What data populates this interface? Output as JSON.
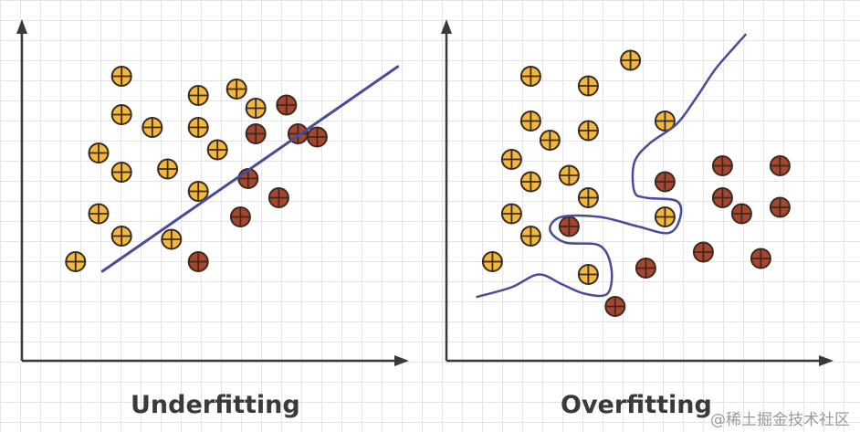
{
  "labels": {
    "underfitting": "Underfitting",
    "overfitting": "Overfitting",
    "watermark": "@稀土掘金技术社区"
  },
  "colors": {
    "class_a": "#f2b83e",
    "class_b": "#a8452f",
    "outline": "#3b2a1e",
    "boundary": "#4a4a9a",
    "axis": "#3a3a3a"
  },
  "panels": [
    {
      "name": "underfitting",
      "boundary_type": "line",
      "points": [
        {
          "x": 2.6,
          "y": 8.9,
          "cls": "a"
        },
        {
          "x": 4.6,
          "y": 8.3,
          "cls": "a"
        },
        {
          "x": 5.6,
          "y": 8.5,
          "cls": "a"
        },
        {
          "x": 6.1,
          "y": 7.9,
          "cls": "a"
        },
        {
          "x": 2.6,
          "y": 7.7,
          "cls": "a"
        },
        {
          "x": 3.4,
          "y": 7.3,
          "cls": "a"
        },
        {
          "x": 4.6,
          "y": 7.3,
          "cls": "a"
        },
        {
          "x": 2.0,
          "y": 6.5,
          "cls": "a"
        },
        {
          "x": 2.6,
          "y": 5.9,
          "cls": "a"
        },
        {
          "x": 3.8,
          "y": 6.0,
          "cls": "a"
        },
        {
          "x": 5.1,
          "y": 6.6,
          "cls": "a"
        },
        {
          "x": 4.6,
          "y": 5.3,
          "cls": "a"
        },
        {
          "x": 2.0,
          "y": 4.6,
          "cls": "a"
        },
        {
          "x": 2.6,
          "y": 3.9,
          "cls": "a"
        },
        {
          "x": 3.9,
          "y": 3.8,
          "cls": "a"
        },
        {
          "x": 1.4,
          "y": 3.1,
          "cls": "a"
        },
        {
          "x": 6.9,
          "y": 8.0,
          "cls": "b"
        },
        {
          "x": 6.1,
          "y": 7.1,
          "cls": "b"
        },
        {
          "x": 7.2,
          "y": 7.1,
          "cls": "b"
        },
        {
          "x": 7.7,
          "y": 7.0,
          "cls": "b"
        },
        {
          "x": 5.9,
          "y": 5.7,
          "cls": "b"
        },
        {
          "x": 6.7,
          "y": 5.1,
          "cls": "b"
        },
        {
          "x": 5.7,
          "y": 4.5,
          "cls": "b"
        },
        {
          "x": 4.6,
          "y": 3.1,
          "cls": "b"
        }
      ],
      "boundary": [
        [
          2.1,
          2.8
        ],
        [
          9.8,
          9.2
        ]
      ]
    },
    {
      "name": "overfitting",
      "boundary_type": "curve",
      "points": [
        {
          "x": 2.2,
          "y": 8.9,
          "cls": "a"
        },
        {
          "x": 3.7,
          "y": 8.6,
          "cls": "a"
        },
        {
          "x": 4.8,
          "y": 9.4,
          "cls": "a"
        },
        {
          "x": 2.2,
          "y": 7.5,
          "cls": "a"
        },
        {
          "x": 2.7,
          "y": 6.9,
          "cls": "a"
        },
        {
          "x": 3.7,
          "y": 7.2,
          "cls": "a"
        },
        {
          "x": 5.7,
          "y": 7.5,
          "cls": "a"
        },
        {
          "x": 1.7,
          "y": 6.3,
          "cls": "a"
        },
        {
          "x": 2.2,
          "y": 5.6,
          "cls": "a"
        },
        {
          "x": 3.2,
          "y": 5.8,
          "cls": "a"
        },
        {
          "x": 3.7,
          "y": 5.1,
          "cls": "a"
        },
        {
          "x": 1.7,
          "y": 4.6,
          "cls": "a"
        },
        {
          "x": 2.2,
          "y": 3.9,
          "cls": "a"
        },
        {
          "x": 5.7,
          "y": 4.5,
          "cls": "a"
        },
        {
          "x": 1.2,
          "y": 3.1,
          "cls": "a"
        },
        {
          "x": 3.7,
          "y": 2.7,
          "cls": "a"
        },
        {
          "x": 7.2,
          "y": 6.1,
          "cls": "b"
        },
        {
          "x": 8.7,
          "y": 6.1,
          "cls": "b"
        },
        {
          "x": 5.7,
          "y": 5.6,
          "cls": "b"
        },
        {
          "x": 7.2,
          "y": 5.1,
          "cls": "b"
        },
        {
          "x": 7.7,
          "y": 4.6,
          "cls": "b"
        },
        {
          "x": 8.7,
          "y": 4.8,
          "cls": "b"
        },
        {
          "x": 3.2,
          "y": 4.2,
          "cls": "b"
        },
        {
          "x": 6.7,
          "y": 3.4,
          "cls": "b"
        },
        {
          "x": 8.2,
          "y": 3.2,
          "cls": "b"
        },
        {
          "x": 5.2,
          "y": 2.9,
          "cls": "b"
        },
        {
          "x": 4.4,
          "y": 1.7,
          "cls": "b"
        }
      ],
      "boundary": [
        [
          0.8,
          2.0
        ],
        [
          1.7,
          2.3
        ],
        [
          2.4,
          2.7
        ],
        [
          3.0,
          2.4
        ],
        [
          3.6,
          2.1
        ],
        [
          4.2,
          2.1
        ],
        [
          4.3,
          2.9
        ],
        [
          4.0,
          3.6
        ],
        [
          3.1,
          3.7
        ],
        [
          2.7,
          4.1
        ],
        [
          3.0,
          4.5
        ],
        [
          4.0,
          4.5
        ],
        [
          5.0,
          4.2
        ],
        [
          5.8,
          4.0
        ],
        [
          6.1,
          4.5
        ],
        [
          6.0,
          5.0
        ],
        [
          5.2,
          5.1
        ],
        [
          4.9,
          5.3
        ],
        [
          4.9,
          6.2
        ],
        [
          5.3,
          6.8
        ],
        [
          6.0,
          7.4
        ],
        [
          6.5,
          8.2
        ],
        [
          7.0,
          9.1
        ],
        [
          7.5,
          9.8
        ],
        [
          7.8,
          10.2
        ]
      ]
    }
  ]
}
